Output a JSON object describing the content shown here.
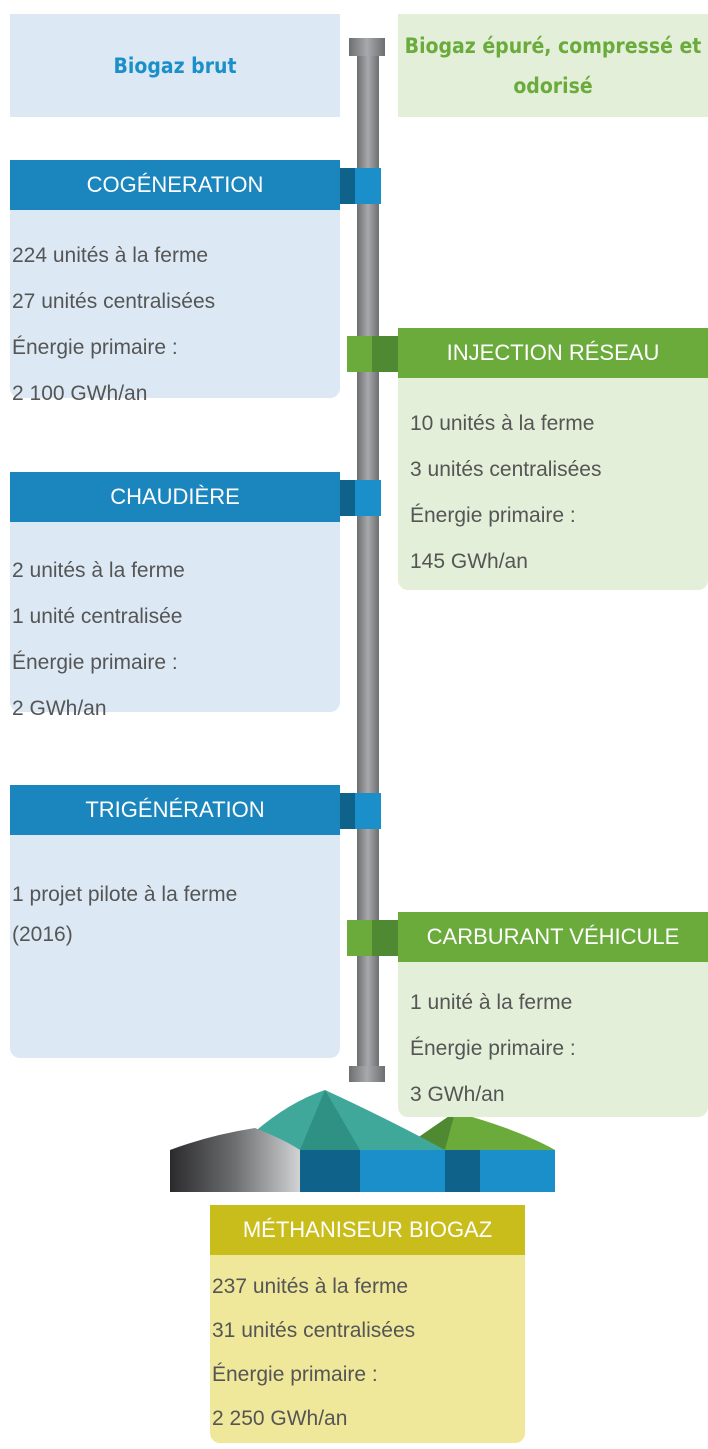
{
  "header": {
    "left": "Biogaz brut",
    "right": "Biogaz épuré, compressé et odorisé"
  },
  "boxes": [
    {
      "title": "COGÉNERATION",
      "lines": [
        "224 unités à la ferme",
        "27 unités centralisées",
        "Énergie primaire :",
        "2 100 GWh/an"
      ]
    },
    {
      "title": "INJECTION RÉSEAU",
      "lines": [
        "10 unités à la ferme",
        "3 unités centralisées",
        "Énergie primaire :",
        "145 GWh/an"
      ]
    },
    {
      "title": "CHAUDIÈRE",
      "lines": [
        "2 unités à la ferme",
        "1 unité centralisée",
        "Énergie primaire :",
        "2 GWh/an"
      ]
    },
    {
      "title": "TRIGÉNÉRATION",
      "lines": [
        "1 projet pilote à la ferme",
        "(2016)"
      ]
    },
    {
      "title": "CARBURANT VÉHICULE",
      "lines": [
        "1 unité à la ferme",
        "Énergie primaire :",
        "3 GWh/an"
      ]
    }
  ],
  "methaniseur": {
    "title": "MÉTHANISEUR BIOGAZ",
    "lines": [
      "237 unités à la ferme",
      "31 unités centralisées",
      "Énergie primaire :",
      "2 250 GWh/an"
    ]
  }
}
